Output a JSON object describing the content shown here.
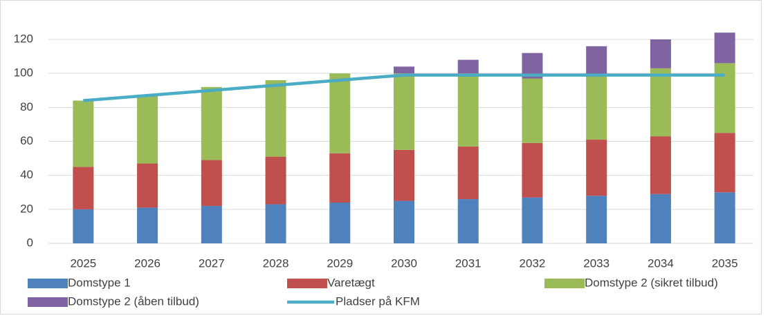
{
  "chart_data": {
    "type": "bar",
    "stacked": true,
    "categories": [
      "2025",
      "2026",
      "2027",
      "2028",
      "2029",
      "2030",
      "2031",
      "2032",
      "2033",
      "2034",
      "2035"
    ],
    "series": [
      {
        "name": "Domstype 1",
        "color": "#4f81bd",
        "values": [
          20,
          21,
          22,
          23,
          24,
          25,
          26,
          27,
          28,
          29,
          30
        ]
      },
      {
        "name": "Varetægt",
        "color": "#c0504d",
        "values": [
          25,
          26,
          27,
          28,
          29,
          30,
          31,
          32,
          33,
          34,
          35
        ]
      },
      {
        "name": "Domstype 2 (sikret tilbud)",
        "color": "#9bbb59",
        "values": [
          39,
          40,
          43,
          45,
          47,
          45,
          43,
          38,
          38,
          40,
          41
        ]
      },
      {
        "name": "Domstype 2 (åben tilbud)",
        "color": "#8064a2",
        "values": [
          0,
          0,
          0,
          0,
          0,
          4,
          8,
          15,
          17,
          17,
          18
        ]
      },
      {
        "name": "Pladser på KFM",
        "color": "#4bacc6",
        "type": "line",
        "values": [
          84,
          87,
          90,
          93,
          96,
          99,
          99,
          99,
          99,
          99,
          99
        ]
      }
    ],
    "ylim": [
      0,
      120
    ],
    "yticks": [
      0,
      20,
      40,
      60,
      80,
      100,
      120
    ],
    "grid": true,
    "legend": "bottom"
  }
}
